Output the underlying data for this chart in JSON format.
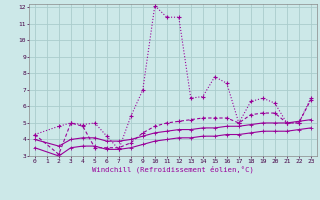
{
  "xlabel": "Windchill (Refroidissement éolien,°C)",
  "background_color": "#cce8e8",
  "grid_color": "#aacccc",
  "line_color": "#990099",
  "xlim": [
    -0.5,
    23.5
  ],
  "ylim": [
    3,
    12.2
  ],
  "yticks": [
    3,
    4,
    5,
    6,
    7,
    8,
    9,
    10,
    11,
    12
  ],
  "xticks": [
    0,
    1,
    2,
    3,
    4,
    5,
    6,
    7,
    8,
    9,
    10,
    11,
    12,
    13,
    14,
    15,
    16,
    17,
    18,
    19,
    20,
    21,
    22,
    23
  ],
  "s1_x": [
    0,
    2,
    3,
    4,
    5,
    6,
    7,
    8,
    9,
    10,
    11,
    12,
    13,
    14,
    15,
    16,
    17,
    18,
    19,
    20,
    21,
    22,
    23
  ],
  "s1_y": [
    4.3,
    4.8,
    5.0,
    4.9,
    5.0,
    4.2,
    3.4,
    5.4,
    7.0,
    12.1,
    11.4,
    11.4,
    6.5,
    6.6,
    7.8,
    7.4,
    5.0,
    6.3,
    6.5,
    6.2,
    5.0,
    5.0,
    6.5
  ],
  "s2_x": [
    0,
    2,
    3,
    4,
    5,
    6,
    7,
    8,
    9,
    10,
    11,
    12,
    13,
    14,
    15,
    16,
    17,
    18,
    19,
    20,
    21,
    22,
    23
  ],
  "s2_y": [
    4.3,
    3.1,
    5.0,
    4.8,
    3.5,
    3.5,
    3.5,
    3.8,
    4.4,
    4.8,
    5.0,
    5.1,
    5.2,
    5.3,
    5.3,
    5.3,
    5.0,
    5.5,
    5.6,
    5.6,
    5.0,
    5.0,
    6.4
  ],
  "s3_x": [
    0,
    2,
    3,
    4,
    5,
    6,
    7,
    8,
    9,
    10,
    11,
    12,
    13,
    14,
    15,
    16,
    17,
    18,
    19,
    20,
    21,
    22,
    23
  ],
  "s3_y": [
    4.0,
    3.6,
    4.0,
    4.1,
    4.1,
    3.9,
    3.9,
    4.0,
    4.2,
    4.4,
    4.5,
    4.6,
    4.6,
    4.7,
    4.7,
    4.8,
    4.8,
    4.9,
    5.0,
    5.0,
    5.0,
    5.1,
    5.2
  ],
  "s4_x": [
    0,
    2,
    3,
    4,
    5,
    6,
    7,
    8,
    9,
    10,
    11,
    12,
    13,
    14,
    15,
    16,
    17,
    18,
    19,
    20,
    21,
    22,
    23
  ],
  "s4_y": [
    3.5,
    3.0,
    3.5,
    3.6,
    3.6,
    3.4,
    3.4,
    3.5,
    3.7,
    3.9,
    4.0,
    4.1,
    4.1,
    4.2,
    4.2,
    4.3,
    4.3,
    4.4,
    4.5,
    4.5,
    4.5,
    4.6,
    4.7
  ]
}
